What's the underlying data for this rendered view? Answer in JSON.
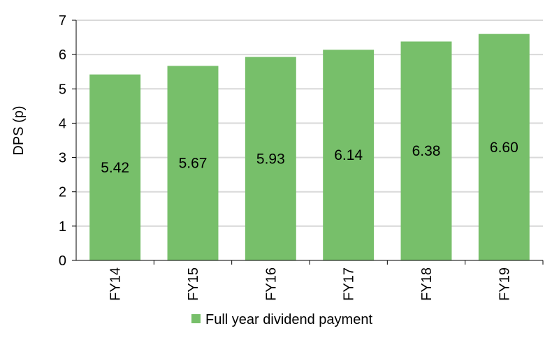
{
  "chart_data": {
    "type": "bar",
    "categories": [
      "FY14",
      "FY15",
      "FY16",
      "FY17",
      "FY18",
      "FY19"
    ],
    "series": [
      {
        "name": "Full year dividend payment",
        "values": [
          5.42,
          5.67,
          5.93,
          6.14,
          6.38,
          6.6
        ]
      }
    ],
    "data_labels": [
      "5.42",
      "5.67",
      "5.93",
      "6.14",
      "6.38",
      "6.60"
    ],
    "title": "",
    "xlabel": "",
    "ylabel": "DPS (p)",
    "ylim": [
      0,
      7
    ],
    "yticks": [
      "0",
      "1",
      "2",
      "3",
      "4",
      "5",
      "6",
      "7"
    ],
    "grid": true,
    "legend_position": "bottom",
    "bar_color": "#77BF6A",
    "grid_color": "#D9D9D9"
  }
}
